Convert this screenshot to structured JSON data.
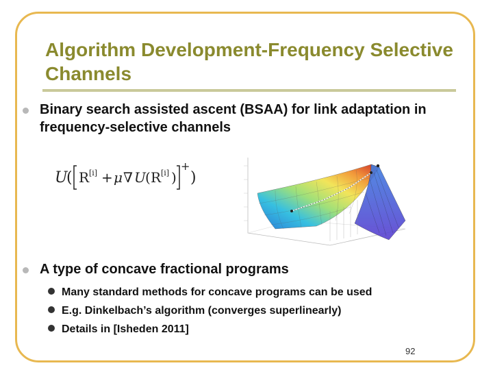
{
  "slide": {
    "title": "Algorithm Development-Frequency Selective Channels",
    "bullets": [
      "Binary search assisted ascent (BSAA) for link adaptation in frequency-selective channels",
      "A type of concave fractional programs"
    ],
    "sub_bullets": [
      "Many standard methods for concave programs can be used",
      "E.g. Dinkelbach’s algorithm (converges superlinearly)",
      "Details in [Isheden 2011]"
    ],
    "page_number": "92"
  },
  "colors": {
    "frame": "#e8b850",
    "title": "#8a8a2e",
    "title_rule": "#c9c99a"
  }
}
